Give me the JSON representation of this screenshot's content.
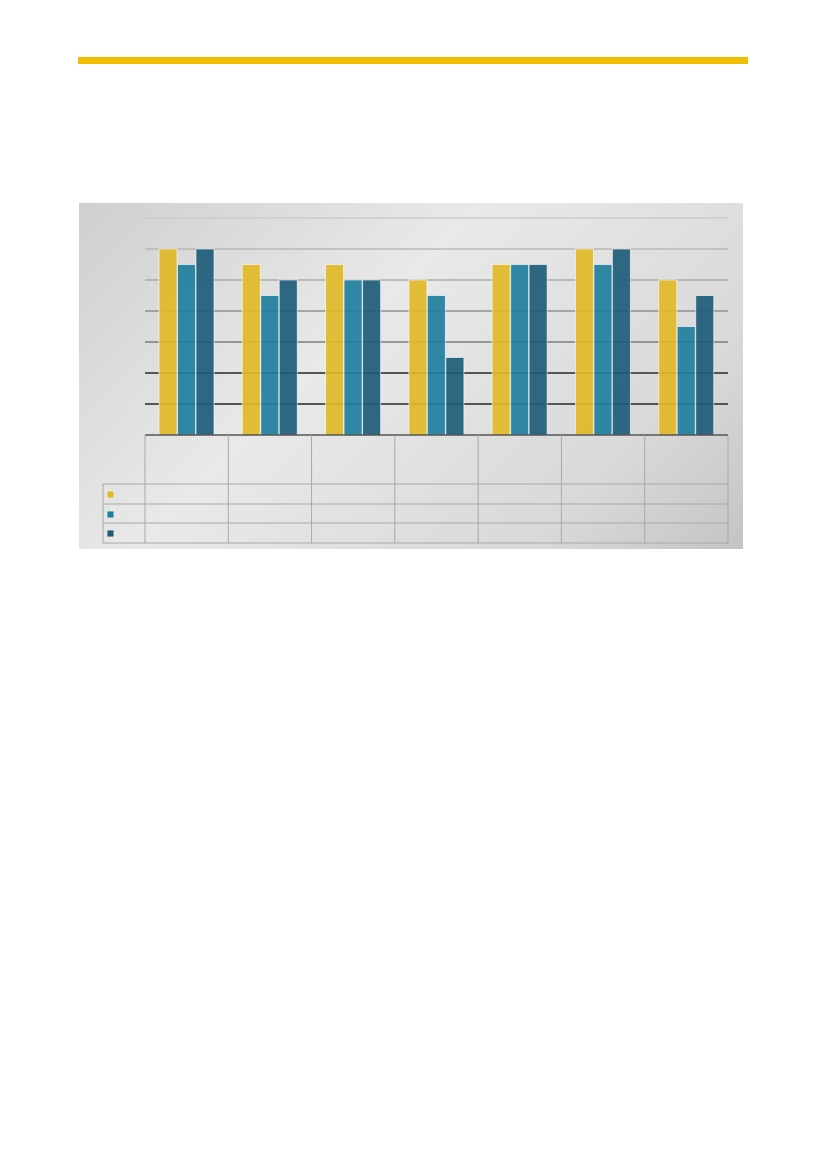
{
  "colors": {
    "accent_bar": "#f0c000",
    "series": [
      "#e0b928",
      "#1f7fa0",
      "#1e5c78"
    ]
  },
  "chart_data": {
    "type": "bar",
    "title": "",
    "xlabel": "",
    "ylabel": "",
    "categories": [
      "",
      "",
      "",
      "",
      "",
      "",
      ""
    ],
    "series": [
      {
        "values": [
          6,
          5.5,
          5.5,
          5,
          5.5,
          6,
          5
        ]
      },
      {
        "values": [
          5.5,
          4.5,
          5,
          4.5,
          5.5,
          5.5,
          3.5
        ]
      },
      {
        "values": [
          6,
          5,
          5,
          2.5,
          5.5,
          6,
          4.5
        ]
      }
    ],
    "ylim": [
      0,
      7
    ],
    "grid": true,
    "legend": "data-table-below",
    "axis_labels_visible": false
  }
}
